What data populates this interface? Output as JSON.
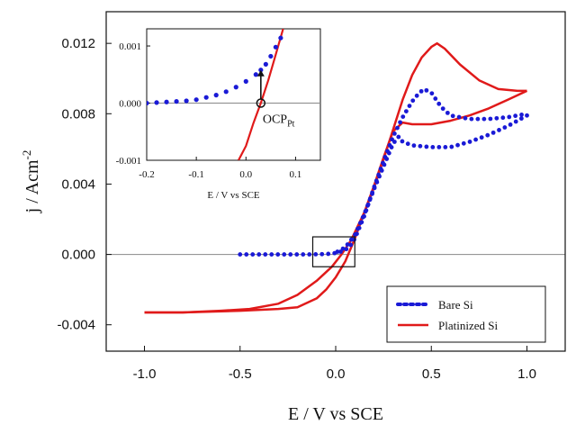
{
  "chart_data": {
    "type": "line",
    "xlabel": "E / V vs SCE",
    "ylabel_main": "j / Acm",
    "ylabel_sup": "-2",
    "xlim": [
      -1.2,
      1.2
    ],
    "ylim": [
      -0.0055,
      0.0138
    ],
    "x_ticks": [
      "-1.0",
      "-0.5",
      "0.0",
      "0.5",
      "1.0"
    ],
    "x_tick_values": [
      -1.0,
      -0.5,
      0.0,
      0.5,
      1.0
    ],
    "y_ticks": [
      "-0.004",
      "0.000",
      "0.004",
      "0.008",
      "0.012"
    ],
    "y_tick_values": [
      -0.004,
      0.0,
      0.004,
      0.008,
      0.012
    ],
    "colors": {
      "bare": "#1a1ad6",
      "platinized": "#e01a1a"
    },
    "legend": [
      "Bare Si",
      "Platinized Si"
    ],
    "series": [
      {
        "name": "Bare Si",
        "style": "dotted",
        "forward": [
          [
            -0.5,
            0.0
          ],
          [
            -0.3,
            0.0
          ],
          [
            -0.15,
            0.0
          ],
          [
            -0.05,
            2e-05
          ],
          [
            0.0,
            8e-05
          ],
          [
            0.04,
            0.0002
          ],
          [
            0.07,
            0.0004
          ],
          [
            0.1,
            0.0009
          ],
          [
            0.15,
            0.0022
          ],
          [
            0.2,
            0.0038
          ],
          [
            0.25,
            0.0053
          ],
          [
            0.3,
            0.0067
          ],
          [
            0.35,
            0.0078
          ],
          [
            0.4,
            0.0087
          ],
          [
            0.43,
            0.0091
          ],
          [
            0.46,
            0.0094
          ],
          [
            0.5,
            0.0092
          ],
          [
            0.55,
            0.0084
          ],
          [
            0.6,
            0.0079
          ],
          [
            0.7,
            0.0077
          ],
          [
            0.8,
            0.0077
          ],
          [
            0.9,
            0.0078
          ],
          [
            1.0,
            0.008
          ]
        ],
        "reverse": [
          [
            1.0,
            0.0079
          ],
          [
            0.9,
            0.0073
          ],
          [
            0.8,
            0.0068
          ],
          [
            0.7,
            0.0064
          ],
          [
            0.6,
            0.0061
          ],
          [
            0.5,
            0.0061
          ],
          [
            0.4,
            0.0062
          ],
          [
            0.35,
            0.0064
          ],
          [
            0.33,
            0.0067
          ],
          [
            0.3,
            0.0063
          ],
          [
            0.25,
            0.005
          ],
          [
            0.2,
            0.0037
          ],
          [
            0.15,
            0.0023
          ],
          [
            0.1,
            0.0011
          ],
          [
            0.05,
            0.0004
          ],
          [
            0.0,
            0.0001
          ]
        ]
      },
      {
        "name": "Platinized Si",
        "style": "solid",
        "forward": [
          [
            -1.0,
            -0.0033
          ],
          [
            -0.8,
            -0.0033
          ],
          [
            -0.6,
            -0.0032
          ],
          [
            -0.45,
            -0.0031
          ],
          [
            -0.3,
            -0.0028
          ],
          [
            -0.2,
            -0.0023
          ],
          [
            -0.1,
            -0.0015
          ],
          [
            -0.02,
            -0.0007
          ],
          [
            0.03,
            0.0
          ],
          [
            0.08,
            0.0008
          ],
          [
            0.15,
            0.0024
          ],
          [
            0.2,
            0.0038
          ],
          [
            0.25,
            0.0054
          ],
          [
            0.3,
            0.0071
          ],
          [
            0.35,
            0.0088
          ],
          [
            0.4,
            0.0102
          ],
          [
            0.45,
            0.0112
          ],
          [
            0.5,
            0.0118
          ],
          [
            0.53,
            0.012
          ],
          [
            0.57,
            0.0117
          ],
          [
            0.65,
            0.0108
          ],
          [
            0.75,
            0.0099
          ],
          [
            0.85,
            0.0094
          ],
          [
            0.95,
            0.0093
          ],
          [
            1.0,
            0.0093
          ]
        ],
        "reverse": [
          [
            1.0,
            0.0093
          ],
          [
            0.9,
            0.0088
          ],
          [
            0.8,
            0.0083
          ],
          [
            0.7,
            0.0079
          ],
          [
            0.6,
            0.0076
          ],
          [
            0.5,
            0.0074
          ],
          [
            0.4,
            0.0074
          ],
          [
            0.35,
            0.0075
          ],
          [
            0.3,
            0.007
          ],
          [
            0.25,
            0.0055
          ],
          [
            0.2,
            0.0039
          ],
          [
            0.15,
            0.0024
          ],
          [
            0.1,
            0.0009
          ],
          [
            0.05,
            -0.0004
          ],
          [
            0.0,
            -0.0013
          ],
          [
            -0.05,
            -0.002
          ],
          [
            -0.1,
            -0.0025
          ],
          [
            -0.2,
            -0.003
          ],
          [
            -0.3,
            -0.0031
          ],
          [
            -0.5,
            -0.0032
          ],
          [
            -0.8,
            -0.0033
          ],
          [
            -1.0,
            -0.0033
          ]
        ]
      }
    ],
    "inset": {
      "xlabel": "E / V vs SCE",
      "xlim": [
        -0.2,
        0.15
      ],
      "ylim": [
        -0.001,
        0.0013
      ],
      "x_ticks": [
        "-0.2",
        "-0.1",
        "0.0",
        "0.1"
      ],
      "x_tick_values": [
        -0.2,
        -0.1,
        0.0,
        0.1
      ],
      "y_ticks": [
        "-0.001",
        "0.000",
        "0.001"
      ],
      "y_tick_values": [
        -0.001,
        0.0,
        0.001
      ],
      "bare": [
        [
          -0.2,
          0.0
        ],
        [
          -0.18,
          1e-05
        ],
        [
          -0.16,
          2e-05
        ],
        [
          -0.14,
          3e-05
        ],
        [
          -0.12,
          4e-05
        ],
        [
          -0.1,
          6e-05
        ],
        [
          -0.08,
          0.0001
        ],
        [
          -0.06,
          0.00014
        ],
        [
          -0.04,
          0.0002
        ],
        [
          -0.02,
          0.00028
        ],
        [
          0.0,
          0.00038
        ],
        [
          0.02,
          0.0005
        ],
        [
          0.03,
          0.00058
        ],
        [
          0.04,
          0.00068
        ],
        [
          0.05,
          0.00082
        ],
        [
          0.06,
          0.00098
        ],
        [
          0.07,
          0.00114
        ]
      ],
      "platinized": [
        [
          -0.015,
          -0.001
        ],
        [
          0.0,
          -0.00075
        ],
        [
          0.015,
          -0.00035
        ],
        [
          0.03,
          0.0
        ],
        [
          0.045,
          0.0004
        ],
        [
          0.06,
          0.00085
        ],
        [
          0.075,
          0.0013
        ]
      ],
      "ocp_label": "OCP",
      "ocp_sub": "Pt",
      "ocp_x": 0.03,
      "arrow_from": 0.0,
      "arrow_to": 0.00058
    },
    "highlight_box": {
      "xrange": [
        -0.12,
        0.1
      ],
      "yrange": [
        -0.0007,
        0.001
      ]
    }
  }
}
